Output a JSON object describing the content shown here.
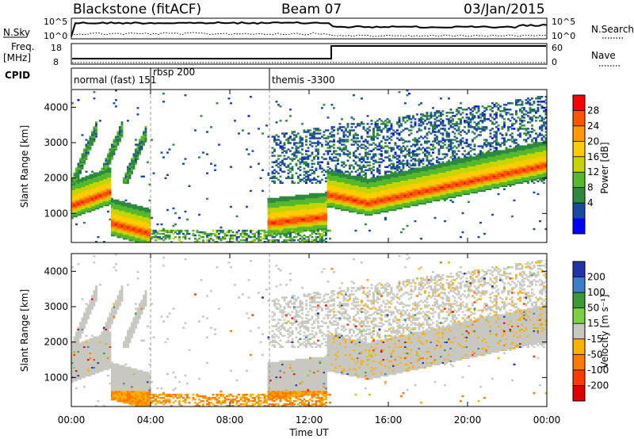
{
  "header": {
    "station": "Blackstone (fitACF)",
    "beam": "Beam 07",
    "date": "03/Jan/2015"
  },
  "strip_labels": {
    "nsky": "N.Sky",
    "nsky_ticks": [
      "10^5",
      "10^0"
    ],
    "nsearch": "N.Search",
    "freq_label_top": "Freq.",
    "freq_label_unit": "[MHz]",
    "freq_ticks": [
      "18",
      "8"
    ],
    "nave": "Nave",
    "nave_ticks": [
      "60",
      "0"
    ],
    "cpid": "CPID"
  },
  "cpid_segments": [
    {
      "label": "normal (fast) 151",
      "start_hour": 0.0
    },
    {
      "label": "rbsp 200",
      "start_hour": 4.0
    },
    {
      "label": "themis -3300",
      "start_hour": 10.0
    }
  ],
  "power_colorbar": {
    "label": "Power [dB]",
    "ticks": [
      "28",
      "24",
      "20",
      "16",
      "12",
      "8",
      "4"
    ],
    "colors": [
      "#ff0000",
      "#ff5500",
      "#ff9900",
      "#ffcc00",
      "#c8d400",
      "#55b82d",
      "#2d8a3c",
      "#1a4aa0",
      "#0000ff"
    ]
  },
  "velocity_colorbar": {
    "label": "Velocity [m s⁻¹]",
    "ticks": [
      "200",
      "100",
      "50",
      "15",
      "-15",
      "-50",
      "-100",
      "-200"
    ],
    "colors": [
      "#2233aa",
      "#3c7fc8",
      "#3a9a3a",
      "#7fd040",
      "#c8c8c0",
      "#ffb000",
      "#ff7a00",
      "#ff3a00",
      "#e00000"
    ]
  },
  "chart_data": [
    {
      "type": "heatmap",
      "quantity": "Power",
      "ylabel": "Slant Range [km]",
      "xlabel": "Time UT",
      "x_ticks": [
        "00:00",
        "04:00",
        "08:00",
        "12:00",
        "16:00",
        "20:00",
        "00:00"
      ],
      "x_range_hours": [
        0,
        24
      ],
      "y_range_km": [
        180,
        4500
      ],
      "y_ticks": [
        1000,
        2000,
        3000,
        4000
      ],
      "colorbar_range_dB": [
        0,
        30
      ],
      "features": [
        {
          "description": "strong echo band",
          "t_start": 0,
          "t_end": 2.0,
          "range_km": [
            1100,
            1700
          ],
          "value_dB": 28
        },
        {
          "description": "near-range echoes",
          "t_start": 1.8,
          "t_end": 4.0,
          "range_km": [
            300,
            700
          ],
          "value_dB": 26
        },
        {
          "description": "moderate echoes",
          "t_start": 9.8,
          "t_end": 12.5,
          "range_km": [
            500,
            1000
          ],
          "value_dB": 24
        },
        {
          "description": "strong echo band",
          "t_start": 13.0,
          "t_end": 24.0,
          "range_km": [
            1200,
            1800
          ],
          "value_dB": 24
        }
      ]
    },
    {
      "type": "heatmap",
      "quantity": "Velocity",
      "ylabel": "Slant Range [km]",
      "xlabel": "Time UT",
      "x_ticks": [
        "00:00",
        "04:00",
        "08:00",
        "12:00",
        "16:00",
        "20:00",
        "00:00"
      ],
      "x_range_hours": [
        0,
        24
      ],
      "y_range_km": [
        180,
        4500
      ],
      "y_ticks": [
        1000,
        2000,
        3000,
        4000
      ],
      "colorbar_range_ms": [
        -250,
        250
      ]
    }
  ]
}
